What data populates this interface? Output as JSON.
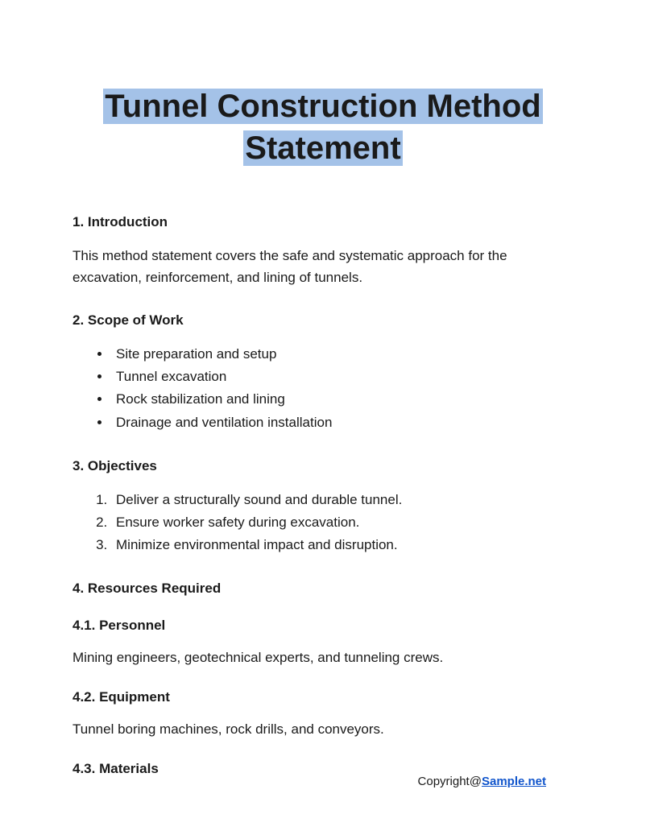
{
  "title_line1": "Tunnel Construction Method",
  "title_line2": "Statement",
  "sections": {
    "s1": {
      "head": "1. Introduction",
      "body": "This method statement covers the safe and systematic approach for the excavation, reinforcement, and lining of tunnels."
    },
    "s2": {
      "head": "2. Scope of Work",
      "items": [
        "Site preparation and setup",
        "Tunnel excavation",
        "Rock stabilization and lining",
        "Drainage and ventilation installation"
      ]
    },
    "s3": {
      "head": "3. Objectives",
      "items": [
        "Deliver a structurally sound and durable tunnel.",
        "Ensure worker safety during excavation.",
        "Minimize environmental impact and disruption."
      ]
    },
    "s4": {
      "head": "4. Resources Required",
      "sub1": {
        "head": "4.1. Personnel",
        "body": "Mining engineers, geotechnical experts, and tunneling crews."
      },
      "sub2": {
        "head": "4.2. Equipment",
        "body": "Tunnel boring machines, rock drills, and conveyors."
      },
      "sub3": {
        "head": "4.3. Materials"
      }
    }
  },
  "footer": {
    "prefix": "Copyright@",
    "link_text": "Sample.net",
    "link_href": "https://Sample.net"
  },
  "colors": {
    "highlight": "#a4c2e8",
    "link": "#1155cc",
    "text": "#1a1a1a",
    "bg": "#ffffff"
  }
}
